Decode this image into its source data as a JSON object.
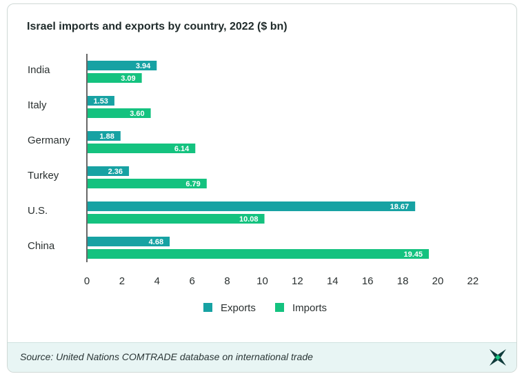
{
  "header": {
    "title": "Israel imports and exports by country, 2022 ($ bn)"
  },
  "footer": {
    "source": "Source: United Nations COMTRADE database on international trade",
    "logo_icon": "star-x-logo-icon"
  },
  "colors": {
    "exports": "#17a2a3",
    "imports": "#14c27f",
    "axis": "#333333"
  },
  "chart_data": {
    "type": "bar",
    "orientation": "horizontal",
    "title": "Israel imports and exports by country, 2022 ($ bn)",
    "categories": [
      "India",
      "Italy",
      "Germany",
      "Turkey",
      "U.S.",
      "China"
    ],
    "series": [
      {
        "name": "Exports",
        "values": [
          3.94,
          1.53,
          1.88,
          2.36,
          18.67,
          4.68
        ]
      },
      {
        "name": "Imports",
        "values": [
          3.09,
          3.6,
          6.14,
          6.79,
          10.08,
          19.45
        ]
      }
    ],
    "data_labels": {
      "Exports": [
        "3.94",
        "1.53",
        "1.88",
        "2.36",
        "18.67",
        "4.68"
      ],
      "Imports": [
        "3.09",
        "3.60",
        "6.14",
        "6.79",
        "10.08",
        "19.45"
      ]
    },
    "xlim": [
      0,
      22
    ],
    "xticks": [
      0,
      2,
      4,
      6,
      8,
      10,
      12,
      14,
      16,
      18,
      20,
      22
    ],
    "xlabel": "",
    "ylabel": "",
    "grid": false,
    "legend": {
      "placement": "bottom-center",
      "entries": [
        "Exports",
        "Imports"
      ]
    }
  }
}
